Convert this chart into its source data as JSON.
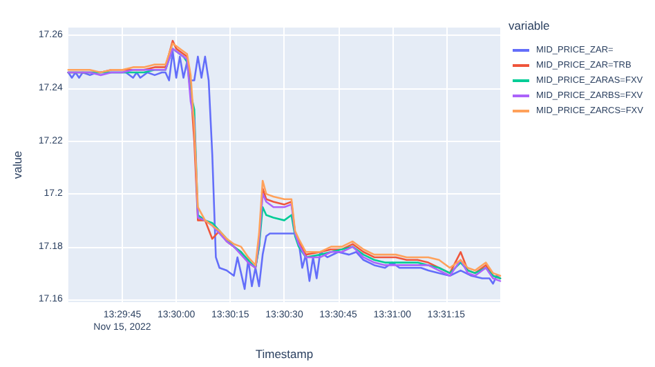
{
  "chart_data": {
    "type": "line",
    "xlabel": "Timestamp",
    "ylabel": "value",
    "legend_title": "variable",
    "legend": "top right",
    "grid": true,
    "marker": "none",
    "line_style": "solid",
    "xlim": [
      "2022-11-15T13:29:30",
      "2022-11-15T13:31:30"
    ],
    "xticks": [
      {
        "value": "2022-11-15T13:29:45",
        "label": "13:29:45\nNov 15, 2022"
      },
      {
        "value": "2022-11-15T13:30:00",
        "label": "13:30:00"
      },
      {
        "value": "2022-11-15T13:30:15",
        "label": "13:30:15"
      },
      {
        "value": "2022-11-15T13:30:30",
        "label": "13:30:30"
      },
      {
        "value": "2022-11-15T13:30:45",
        "label": "13:30:45"
      },
      {
        "value": "2022-11-15T13:31:00",
        "label": "13:31:00"
      },
      {
        "value": "2022-11-15T13:31:15",
        "label": "13:31:15"
      }
    ],
    "ylim": [
      17.159,
      17.263
    ],
    "yticks": [
      17.16,
      17.18,
      17.2,
      17.22,
      17.24,
      17.26
    ],
    "x": [
      "2022-11-15T13:29:30",
      "2022-11-15T13:29:33",
      "2022-11-15T13:29:36",
      "2022-11-15T13:29:39",
      "2022-11-15T13:29:42",
      "2022-11-15T13:29:45",
      "2022-11-15T13:29:48",
      "2022-11-15T13:29:51",
      "2022-11-15T13:29:54",
      "2022-11-15T13:29:57",
      "2022-11-15T13:29:59",
      "2022-11-15T13:30:00",
      "2022-11-15T13:30:02",
      "2022-11-15T13:30:03",
      "2022-11-15T13:30:04",
      "2022-11-15T13:30:05",
      "2022-11-15T13:30:06",
      "2022-11-15T13:30:08",
      "2022-11-15T13:30:10",
      "2022-11-15T13:30:12",
      "2022-11-15T13:30:14",
      "2022-11-15T13:30:16",
      "2022-11-15T13:30:18",
      "2022-11-15T13:30:20",
      "2022-11-15T13:30:22",
      "2022-11-15T13:30:23",
      "2022-11-15T13:30:24",
      "2022-11-15T13:30:25",
      "2022-11-15T13:30:27",
      "2022-11-15T13:30:30",
      "2022-11-15T13:30:32",
      "2022-11-15T13:30:33",
      "2022-11-15T13:30:34",
      "2022-11-15T13:30:36",
      "2022-11-15T13:30:40",
      "2022-11-15T13:30:43",
      "2022-11-15T13:30:46",
      "2022-11-15T13:30:49",
      "2022-11-15T13:30:52",
      "2022-11-15T13:30:55",
      "2022-11-15T13:30:58",
      "2022-11-15T13:31:01",
      "2022-11-15T13:31:04",
      "2022-11-15T13:31:07",
      "2022-11-15T13:31:10",
      "2022-11-15T13:31:13",
      "2022-11-15T13:31:16",
      "2022-11-15T13:31:19",
      "2022-11-15T13:31:21",
      "2022-11-15T13:31:23",
      "2022-11-15T13:31:26",
      "2022-11-15T13:31:28",
      "2022-11-15T13:31:30"
    ],
    "series": [
      {
        "name": "MID_PRICE_ZAR=",
        "color": "#636efa",
        "x": [
          "2022-11-15T13:29:30",
          "2022-11-15T13:29:31",
          "2022-11-15T13:29:32",
          "2022-11-15T13:29:33",
          "2022-11-15T13:29:34",
          "2022-11-15T13:29:36",
          "2022-11-15T13:29:38",
          "2022-11-15T13:29:40",
          "2022-11-15T13:29:42",
          "2022-11-15T13:29:44",
          "2022-11-15T13:29:46",
          "2022-11-15T13:29:48",
          "2022-11-15T13:29:49",
          "2022-11-15T13:29:50",
          "2022-11-15T13:29:52",
          "2022-11-15T13:29:54",
          "2022-11-15T13:29:56",
          "2022-11-15T13:29:57",
          "2022-11-15T13:29:58",
          "2022-11-15T13:29:59",
          "2022-11-15T13:30:00",
          "2022-11-15T13:30:01",
          "2022-11-15T13:30:02",
          "2022-11-15T13:30:03",
          "2022-11-15T13:30:04",
          "2022-11-15T13:30:05",
          "2022-11-15T13:30:06",
          "2022-11-15T13:30:07",
          "2022-11-15T13:30:08",
          "2022-11-15T13:30:09",
          "2022-11-15T13:30:10",
          "2022-11-15T13:30:11",
          "2022-11-15T13:30:12",
          "2022-11-15T13:30:14",
          "2022-11-15T13:30:16",
          "2022-11-15T13:30:17",
          "2022-11-15T13:30:18",
          "2022-11-15T13:30:19",
          "2022-11-15T13:30:20",
          "2022-11-15T13:30:21",
          "2022-11-15T13:30:22",
          "2022-11-15T13:30:23",
          "2022-11-15T13:30:24",
          "2022-11-15T13:30:25",
          "2022-11-15T13:30:26",
          "2022-11-15T13:30:30",
          "2022-11-15T13:30:33",
          "2022-11-15T13:30:34",
          "2022-11-15T13:30:35",
          "2022-11-15T13:30:36",
          "2022-11-15T13:30:37",
          "2022-11-15T13:30:38",
          "2022-11-15T13:30:39",
          "2022-11-15T13:30:40",
          "2022-11-15T13:30:42",
          "2022-11-15T13:30:45",
          "2022-11-15T13:30:48",
          "2022-11-15T13:30:50",
          "2022-11-15T13:30:52",
          "2022-11-15T13:30:55",
          "2022-11-15T13:30:58",
          "2022-11-15T13:31:00",
          "2022-11-15T13:31:02",
          "2022-11-15T13:31:05",
          "2022-11-15T13:31:08",
          "2022-11-15T13:31:10",
          "2022-11-15T13:31:13",
          "2022-11-15T13:31:16",
          "2022-11-15T13:31:19",
          "2022-11-15T13:31:22",
          "2022-11-15T13:31:25",
          "2022-11-15T13:31:27",
          "2022-11-15T13:31:28",
          "2022-11-15T13:31:29",
          "2022-11-15T13:31:30"
        ],
        "values": [
          17.246,
          17.244,
          17.246,
          17.244,
          17.246,
          17.245,
          17.246,
          17.246,
          17.246,
          17.246,
          17.246,
          17.244,
          17.246,
          17.244,
          17.246,
          17.245,
          17.246,
          17.246,
          17.243,
          17.254,
          17.244,
          17.252,
          17.244,
          17.25,
          17.243,
          17.243,
          17.252,
          17.244,
          17.252,
          17.243,
          17.215,
          17.176,
          17.172,
          17.171,
          17.169,
          17.176,
          17.17,
          17.164,
          17.175,
          17.165,
          17.172,
          17.165,
          17.177,
          17.184,
          17.185,
          17.185,
          17.185,
          17.182,
          17.172,
          17.177,
          17.167,
          17.176,
          17.168,
          17.178,
          17.176,
          17.178,
          17.177,
          17.178,
          17.175,
          17.173,
          17.172,
          17.174,
          17.172,
          17.172,
          17.172,
          17.171,
          17.17,
          17.169,
          17.171,
          17.169,
          17.168,
          17.168,
          17.166,
          17.169,
          17.168
        ]
      },
      {
        "name": "MID_PRICE_ZAR=TRB",
        "color": "#ef553b",
        "values": [
          17.246,
          17.246,
          17.246,
          17.246,
          17.247,
          17.247,
          17.247,
          17.247,
          17.248,
          17.248,
          17.258,
          17.255,
          17.253,
          17.252,
          17.24,
          17.22,
          17.19,
          17.19,
          17.183,
          17.186,
          17.182,
          17.18,
          17.178,
          17.174,
          17.172,
          17.18,
          17.202,
          17.198,
          17.197,
          17.196,
          17.197,
          17.185,
          17.182,
          17.177,
          17.178,
          17.179,
          17.179,
          17.181,
          17.178,
          17.176,
          17.176,
          17.176,
          17.175,
          17.175,
          17.174,
          17.172,
          17.17,
          17.178,
          17.171,
          17.17,
          17.173,
          17.169,
          17.168
        ]
      },
      {
        "name": "MID_PRICE_ZARAS=FXV",
        "color": "#00cc96",
        "values": [
          17.246,
          17.246,
          17.246,
          17.246,
          17.246,
          17.246,
          17.246,
          17.246,
          17.247,
          17.247,
          17.255,
          17.254,
          17.252,
          17.25,
          17.238,
          17.232,
          17.192,
          17.19,
          17.189,
          17.186,
          17.183,
          17.18,
          17.178,
          17.175,
          17.172,
          17.18,
          17.195,
          17.192,
          17.191,
          17.19,
          17.192,
          17.184,
          17.18,
          17.176,
          17.177,
          17.178,
          17.179,
          17.18,
          17.177,
          17.175,
          17.174,
          17.174,
          17.174,
          17.174,
          17.173,
          17.172,
          17.17,
          17.174,
          17.171,
          17.17,
          17.172,
          17.169,
          17.168
        ]
      },
      {
        "name": "MID_PRICE_ZARBS=FXV",
        "color": "#ab63fa",
        "values": [
          17.246,
          17.246,
          17.246,
          17.245,
          17.246,
          17.246,
          17.247,
          17.247,
          17.247,
          17.247,
          17.255,
          17.254,
          17.252,
          17.251,
          17.235,
          17.228,
          17.191,
          17.19,
          17.188,
          17.185,
          17.182,
          17.18,
          17.177,
          17.174,
          17.172,
          17.182,
          17.2,
          17.197,
          17.195,
          17.195,
          17.196,
          17.185,
          17.181,
          17.176,
          17.176,
          17.178,
          17.178,
          17.18,
          17.176,
          17.174,
          17.173,
          17.173,
          17.173,
          17.173,
          17.173,
          17.171,
          17.169,
          17.175,
          17.17,
          17.169,
          17.172,
          17.168,
          17.167
        ]
      },
      {
        "name": "MID_PRICE_ZARCS=FXV",
        "color": "#ffa15a",
        "values": [
          17.247,
          17.247,
          17.247,
          17.246,
          17.247,
          17.247,
          17.248,
          17.248,
          17.249,
          17.249,
          17.257,
          17.256,
          17.254,
          17.253,
          17.245,
          17.225,
          17.195,
          17.19,
          17.188,
          17.186,
          17.183,
          17.181,
          17.18,
          17.176,
          17.173,
          17.185,
          17.205,
          17.2,
          17.199,
          17.198,
          17.198,
          17.186,
          17.183,
          17.178,
          17.178,
          17.18,
          17.18,
          17.182,
          17.179,
          17.177,
          17.177,
          17.177,
          17.176,
          17.176,
          17.176,
          17.175,
          17.172,
          17.175,
          17.172,
          17.171,
          17.174,
          17.17,
          17.169
        ]
      }
    ]
  }
}
